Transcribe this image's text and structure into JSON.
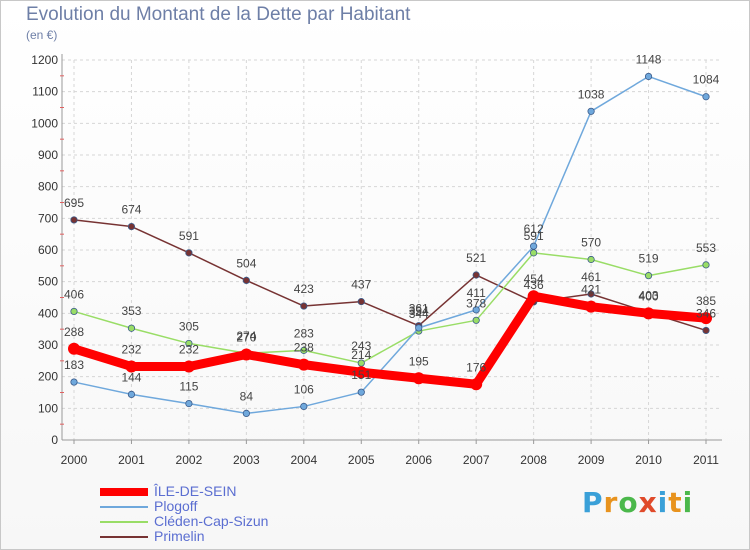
{
  "header": {
    "title": "Evolution du Montant de la Dette par Habitant",
    "subtitle": "(en €)"
  },
  "logo": {
    "letters": [
      "P",
      "r",
      "o",
      "x",
      "i",
      "t",
      "i"
    ],
    "colors": [
      "#3aa0d8",
      "#e8931e",
      "#4bb84b",
      "#e04a2a",
      "#3aa0d8",
      "#e8931e",
      "#4bb84b"
    ]
  },
  "chart_data": {
    "type": "line",
    "title": "Evolution du Montant de la Dette par Habitant",
    "subtitle": "(en €)",
    "categories": [
      "2000",
      "2001",
      "2002",
      "2003",
      "2004",
      "2005",
      "2006",
      "2007",
      "2008",
      "2009",
      "2010",
      "2011"
    ],
    "ylim": [
      0,
      1200
    ],
    "yticks": [
      0,
      100,
      200,
      300,
      400,
      500,
      600,
      700,
      800,
      900,
      1000,
      1100,
      1200
    ],
    "grid": true,
    "legend_position": "bottom-left",
    "series": [
      {
        "name": "ÎLE-DE-SEIN",
        "color": "#ff0000",
        "values": [
          288,
          232,
          232,
          270,
          238,
          214,
          195,
          176,
          454,
          421,
          400,
          385
        ],
        "labels": [
          "288",
          "232",
          "232",
          "270",
          "238",
          "214",
          "195",
          "176",
          "454",
          "421",
          "400",
          "385"
        ]
      },
      {
        "name": "Plogoff",
        "color": "#6fa8dc",
        "values": [
          183,
          144,
          115,
          84,
          106,
          151,
          354,
          411,
          612,
          1038,
          1148,
          1084
        ],
        "labels": [
          "183",
          "144",
          "115",
          "84",
          "106",
          "151",
          "354",
          "411",
          "612",
          "1038",
          "1148",
          "1084"
        ]
      },
      {
        "name": "Cléden-Cap-Sizun",
        "color": "#99dd66",
        "values": [
          406,
          353,
          305,
          274,
          283,
          243,
          344,
          378,
          591,
          570,
          519,
          553
        ],
        "labels": [
          "406",
          "353",
          "305",
          "274",
          "283",
          "243",
          "344",
          "378",
          "591",
          "570",
          "519",
          "553"
        ]
      },
      {
        "name": "Primelin",
        "color": "#773333",
        "values": [
          695,
          674,
          591,
          504,
          423,
          437,
          361,
          521,
          436,
          461,
          403,
          346
        ],
        "labels": [
          "695",
          "674",
          "591",
          "504",
          "423",
          "437",
          "361",
          "521",
          "436",
          "461",
          "403",
          "346"
        ]
      }
    ]
  }
}
